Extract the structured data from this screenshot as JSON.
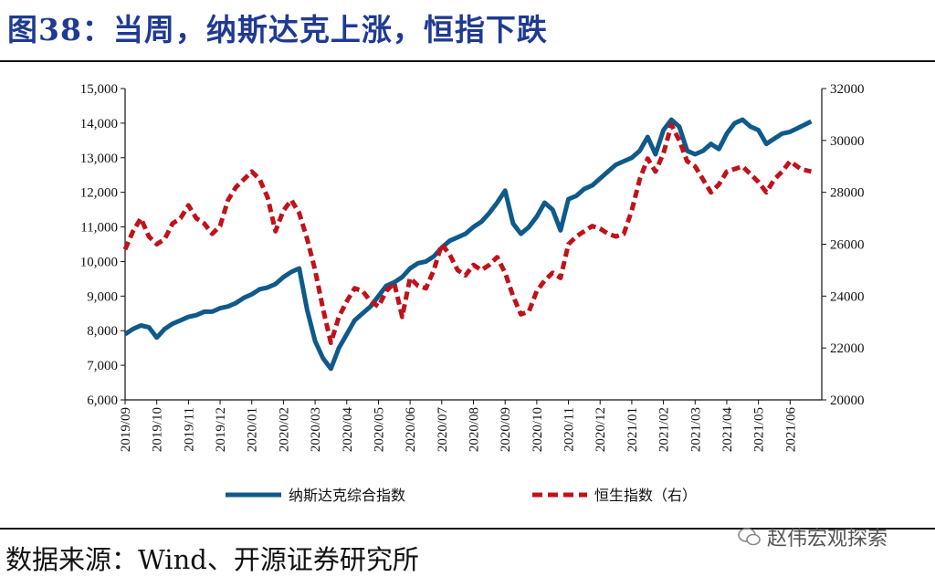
{
  "header": {
    "figure_title": "图38：当周，纳斯达克上涨，恒指下跌"
  },
  "footer": {
    "source_text": "数据来源：Wind、开源证券研究所",
    "watermark_text": "赵伟宏观探索"
  },
  "colors": {
    "title": "#1f3a93",
    "nasdaq": "#0f5a8a",
    "hsi": "#c0121b"
  },
  "chart_data": {
    "type": "line",
    "x_ticks": [
      "2019/09",
      "2019/10",
      "2019/11",
      "2019/12",
      "2020/01",
      "2020/02",
      "2020/03",
      "2020/04",
      "2020/05",
      "2020/06",
      "2020/07",
      "2020/08",
      "2020/09",
      "2020/10",
      "2020/11",
      "2020/12",
      "2021/01",
      "2021/02",
      "2021/03",
      "2021/04",
      "2021/05",
      "2021/06"
    ],
    "y_left": {
      "ylim": [
        6000,
        15000
      ],
      "ticks": [
        "6,000",
        "7,000",
        "8,000",
        "9,000",
        "10,000",
        "11,000",
        "12,000",
        "13,000",
        "14,000",
        "15,000"
      ]
    },
    "y_right": {
      "ylim": [
        20000,
        32000
      ],
      "ticks": [
        "20000",
        "22000",
        "24000",
        "26000",
        "28000",
        "30000",
        "32000"
      ]
    },
    "grid": false,
    "legend_position": "bottom",
    "series": [
      {
        "name": "纳斯达克综合指数",
        "axis": "left",
        "style": "solid",
        "points": [
          [
            "2019/09",
            7900
          ],
          [
            "2019/09",
            8050
          ],
          [
            "2019/09",
            8150
          ],
          [
            "2019/09",
            8100
          ],
          [
            "2019/10",
            7800
          ],
          [
            "2019/10",
            8050
          ],
          [
            "2019/10",
            8200
          ],
          [
            "2019/10",
            8300
          ],
          [
            "2019/11",
            8400
          ],
          [
            "2019/11",
            8450
          ],
          [
            "2019/11",
            8550
          ],
          [
            "2019/11",
            8550
          ],
          [
            "2019/12",
            8650
          ],
          [
            "2019/12",
            8700
          ],
          [
            "2019/12",
            8800
          ],
          [
            "2019/12",
            8950
          ],
          [
            "2020/01",
            9050
          ],
          [
            "2020/01",
            9200
          ],
          [
            "2020/01",
            9250
          ],
          [
            "2020/01",
            9350
          ],
          [
            "2020/02",
            9550
          ],
          [
            "2020/02",
            9700
          ],
          [
            "2020/02",
            9800
          ],
          [
            "2020/02",
            8600
          ],
          [
            "2020/03",
            7700
          ],
          [
            "2020/03",
            7200
          ],
          [
            "2020/03",
            6900
          ],
          [
            "2020/03",
            7500
          ],
          [
            "2020/04",
            7900
          ],
          [
            "2020/04",
            8300
          ],
          [
            "2020/04",
            8500
          ],
          [
            "2020/04",
            8700
          ],
          [
            "2020/05",
            9000
          ],
          [
            "2020/05",
            9300
          ],
          [
            "2020/05",
            9400
          ],
          [
            "2020/05",
            9550
          ],
          [
            "2020/06",
            9800
          ],
          [
            "2020/06",
            9950
          ],
          [
            "2020/06",
            10000
          ],
          [
            "2020/06",
            10150
          ],
          [
            "2020/07",
            10400
          ],
          [
            "2020/07",
            10600
          ],
          [
            "2020/07",
            10700
          ],
          [
            "2020/07",
            10800
          ],
          [
            "2020/08",
            11000
          ],
          [
            "2020/08",
            11150
          ],
          [
            "2020/08",
            11400
          ],
          [
            "2020/08",
            11700
          ],
          [
            "2020/09",
            12050
          ],
          [
            "2020/09",
            11100
          ],
          [
            "2020/09",
            10800
          ],
          [
            "2020/09",
            11000
          ],
          [
            "2020/10",
            11300
          ],
          [
            "2020/10",
            11700
          ],
          [
            "2020/10",
            11500
          ],
          [
            "2020/10",
            10900
          ],
          [
            "2020/11",
            11800
          ],
          [
            "2020/11",
            11900
          ],
          [
            "2020/11",
            12100
          ],
          [
            "2020/11",
            12200
          ],
          [
            "2020/12",
            12400
          ],
          [
            "2020/12",
            12600
          ],
          [
            "2020/12",
            12800
          ],
          [
            "2020/12",
            12900
          ],
          [
            "2021/01",
            13000
          ],
          [
            "2021/01",
            13200
          ],
          [
            "2021/01",
            13600
          ],
          [
            "2021/01",
            13100
          ],
          [
            "2021/02",
            13800
          ],
          [
            "2021/02",
            14100
          ],
          [
            "2021/02",
            13900
          ],
          [
            "2021/02",
            13200
          ],
          [
            "2021/03",
            13100
          ],
          [
            "2021/03",
            13200
          ],
          [
            "2021/03",
            13400
          ],
          [
            "2021/03",
            13250
          ],
          [
            "2021/04",
            13700
          ],
          [
            "2021/04",
            14000
          ],
          [
            "2021/04",
            14100
          ],
          [
            "2021/04",
            13900
          ],
          [
            "2021/05",
            13800
          ],
          [
            "2021/05",
            13400
          ],
          [
            "2021/05",
            13550
          ],
          [
            "2021/05",
            13700
          ],
          [
            "2021/06",
            13750
          ],
          [
            "2021/06",
            13900
          ],
          [
            "2021/06",
            14050
          ]
        ]
      },
      {
        "name": "恒生指数（右）",
        "axis": "right",
        "style": "dashed",
        "points": [
          [
            "2019/09",
            25800
          ],
          [
            "2019/09",
            26500
          ],
          [
            "2019/09",
            27000
          ],
          [
            "2019/09",
            26300
          ],
          [
            "2019/10",
            26000
          ],
          [
            "2019/10",
            26200
          ],
          [
            "2019/10",
            26800
          ],
          [
            "2019/10",
            27000
          ],
          [
            "2019/11",
            27500
          ],
          [
            "2019/11",
            27000
          ],
          [
            "2019/11",
            26800
          ],
          [
            "2019/11",
            26400
          ],
          [
            "2019/12",
            26700
          ],
          [
            "2019/12",
            27700
          ],
          [
            "2019/12",
            28200
          ],
          [
            "2019/12",
            28500
          ],
          [
            "2020/01",
            28800
          ],
          [
            "2020/01",
            28500
          ],
          [
            "2020/01",
            27800
          ],
          [
            "2020/01",
            26500
          ],
          [
            "2020/02",
            27300
          ],
          [
            "2020/02",
            27700
          ],
          [
            "2020/02",
            27200
          ],
          [
            "2020/02",
            26200
          ],
          [
            "2020/03",
            25000
          ],
          [
            "2020/03",
            23500
          ],
          [
            "2020/03",
            22200
          ],
          [
            "2020/03",
            23200
          ],
          [
            "2020/04",
            23800
          ],
          [
            "2020/04",
            24300
          ],
          [
            "2020/04",
            24200
          ],
          [
            "2020/04",
            23800
          ],
          [
            "2020/05",
            23600
          ],
          [
            "2020/05",
            24200
          ],
          [
            "2020/05",
            24500
          ],
          [
            "2020/05",
            23200
          ],
          [
            "2020/06",
            24700
          ],
          [
            "2020/06",
            24400
          ],
          [
            "2020/06",
            24300
          ],
          [
            "2020/06",
            25000
          ],
          [
            "2020/07",
            26000
          ],
          [
            "2020/07",
            25600
          ],
          [
            "2020/07",
            25000
          ],
          [
            "2020/07",
            24800
          ],
          [
            "2020/08",
            25200
          ],
          [
            "2020/08",
            25000
          ],
          [
            "2020/08",
            25200
          ],
          [
            "2020/08",
            25500
          ],
          [
            "2020/09",
            24900
          ],
          [
            "2020/09",
            24000
          ],
          [
            "2020/09",
            23300
          ],
          [
            "2020/09",
            23400
          ],
          [
            "2020/10",
            24200
          ],
          [
            "2020/10",
            24600
          ],
          [
            "2020/10",
            24900
          ],
          [
            "2020/10",
            24700
          ],
          [
            "2020/11",
            26000
          ],
          [
            "2020/11",
            26300
          ],
          [
            "2020/11",
            26500
          ],
          [
            "2020/11",
            26700
          ],
          [
            "2020/12",
            26600
          ],
          [
            "2020/12",
            26400
          ],
          [
            "2020/12",
            26300
          ],
          [
            "2020/12",
            26400
          ],
          [
            "2021/01",
            27300
          ],
          [
            "2021/01",
            28500
          ],
          [
            "2021/01",
            29300
          ],
          [
            "2021/01",
            28800
          ],
          [
            "2021/02",
            29500
          ],
          [
            "2021/02",
            30600
          ],
          [
            "2021/02",
            30000
          ],
          [
            "2021/02",
            29200
          ],
          [
            "2021/03",
            29000
          ],
          [
            "2021/03",
            28500
          ],
          [
            "2021/03",
            28000
          ],
          [
            "2021/03",
            28300
          ],
          [
            "2021/04",
            28800
          ],
          [
            "2021/04",
            28900
          ],
          [
            "2021/04",
            29000
          ],
          [
            "2021/04",
            28700
          ],
          [
            "2021/05",
            28400
          ],
          [
            "2021/05",
            28000
          ],
          [
            "2021/05",
            28500
          ],
          [
            "2021/05",
            28800
          ],
          [
            "2021/06",
            29200
          ],
          [
            "2021/06",
            28900
          ],
          [
            "2021/06",
            28800
          ]
        ]
      }
    ]
  }
}
